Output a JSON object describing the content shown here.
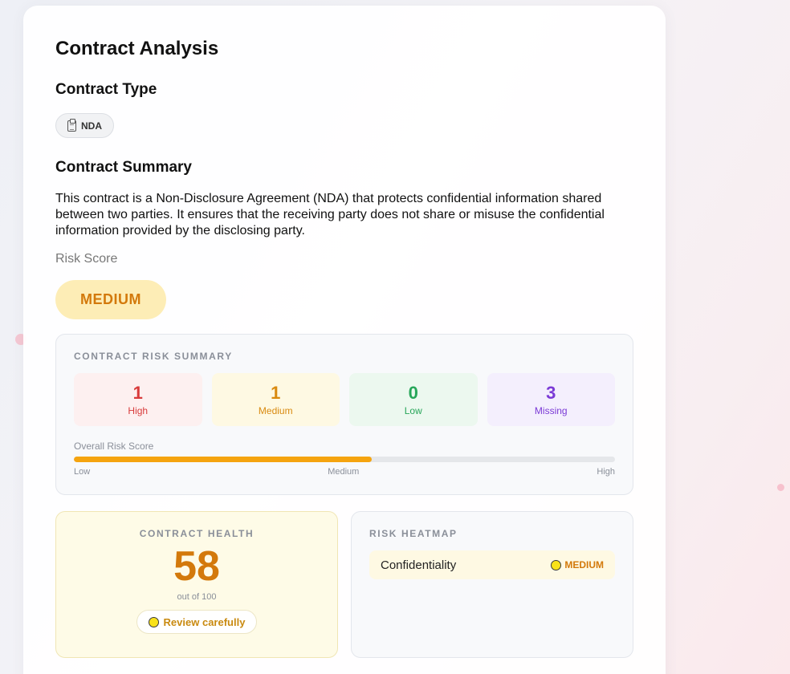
{
  "page": {
    "title": "Contract Analysis"
  },
  "contract_type": {
    "heading": "Contract Type",
    "icon": "clipboard-icon",
    "value": "NDA"
  },
  "summary": {
    "heading": "Contract Summary",
    "text": "This contract is a Non-Disclosure Agreement (NDA) that protects confidential information shared between two parties. It ensures that the receiving party does not share or misuse the confidential information provided by the disclosing party."
  },
  "risk": {
    "label": "Risk Score",
    "level": "MEDIUM",
    "color": "#d3790b"
  },
  "risk_summary": {
    "title": "CONTRACT RISK SUMMARY",
    "counts": [
      {
        "value": "1",
        "label": "High",
        "color": "#d83b3b"
      },
      {
        "value": "1",
        "label": "Medium",
        "color": "#d98a10"
      },
      {
        "value": "0",
        "label": "Low",
        "color": "#27a659"
      },
      {
        "value": "3",
        "label": "Missing",
        "color": "#7b3ad6"
      }
    ],
    "overall_label": "Overall Risk Score",
    "overall_fraction": 0.55,
    "scale": {
      "low": "Low",
      "medium": "Medium",
      "high": "High"
    }
  },
  "health": {
    "title": "CONTRACT HEALTH",
    "score": "58",
    "subtitle": "out of 100",
    "status_icon": "yellow-circle-icon",
    "status": "Review carefully"
  },
  "heatmap": {
    "title": "RISK HEATMAP",
    "rows": [
      {
        "name": "Confidentiality",
        "icon": "yellow-circle-icon",
        "level": "MEDIUM"
      }
    ]
  }
}
